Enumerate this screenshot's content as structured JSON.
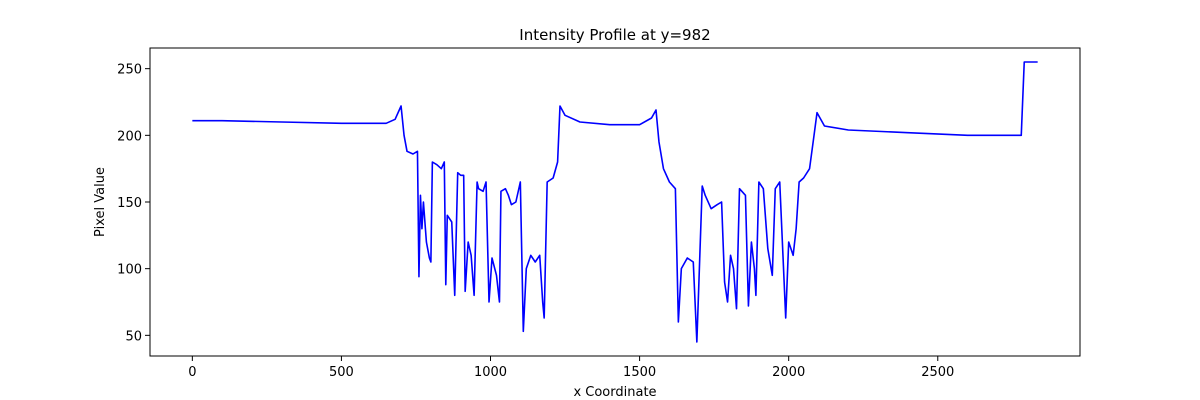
{
  "chart_data": {
    "type": "line",
    "title": "Intensity Profile at y=982",
    "xlabel": "x Coordinate",
    "ylabel": "Pixel Value",
    "color": "#0000ff",
    "x": [
      0,
      100,
      300,
      500,
      650,
      680,
      700,
      710,
      720,
      740,
      755,
      760,
      765,
      770,
      775,
      785,
      795,
      800,
      805,
      820,
      835,
      845,
      850,
      855,
      870,
      880,
      890,
      900,
      910,
      915,
      925,
      935,
      945,
      955,
      960,
      975,
      985,
      995,
      1005,
      1020,
      1030,
      1035,
      1050,
      1060,
      1070,
      1085,
      1100,
      1110,
      1120,
      1135,
      1150,
      1165,
      1175,
      1180,
      1190,
      1210,
      1225,
      1233,
      1250,
      1300,
      1400,
      1500,
      1540,
      1555,
      1565,
      1580,
      1600,
      1620,
      1630,
      1640,
      1660,
      1680,
      1692,
      1710,
      1720,
      1740,
      1760,
      1775,
      1785,
      1795,
      1805,
      1815,
      1825,
      1835,
      1855,
      1865,
      1875,
      1885,
      1890,
      1900,
      1915,
      1930,
      1945,
      1955,
      1970,
      1990,
      2000,
      2015,
      2025,
      2035,
      2050,
      2070,
      2085,
      2095,
      2120,
      2200,
      2400,
      2600,
      2780,
      2790,
      2835
    ],
    "values": [
      211,
      211,
      210,
      209,
      209,
      212,
      222,
      200,
      188,
      186,
      188,
      94,
      155,
      130,
      150,
      120,
      108,
      105,
      180,
      178,
      175,
      180,
      88,
      140,
      135,
      80,
      172,
      170,
      170,
      83,
      120,
      110,
      80,
      165,
      160,
      158,
      165,
      75,
      108,
      95,
      75,
      158,
      160,
      155,
      148,
      150,
      165,
      53,
      100,
      110,
      105,
      110,
      75,
      63,
      165,
      168,
      180,
      222,
      215,
      210,
      208,
      208,
      213,
      219,
      195,
      175,
      165,
      160,
      60,
      100,
      108,
      105,
      45,
      162,
      155,
      145,
      148,
      150,
      90,
      75,
      110,
      100,
      70,
      160,
      155,
      72,
      120,
      100,
      80,
      165,
      160,
      115,
      95,
      160,
      165,
      63,
      120,
      110,
      130,
      165,
      168,
      175,
      200,
      217,
      207,
      204,
      202,
      200,
      200,
      255,
      255
    ],
    "xlim": [
      -142,
      2977
    ],
    "ylim": [
      34.5,
      265.5
    ],
    "xticks": [
      0,
      500,
      1000,
      1500,
      2000,
      2500
    ],
    "yticks": [
      50,
      100,
      150,
      200,
      250
    ]
  }
}
